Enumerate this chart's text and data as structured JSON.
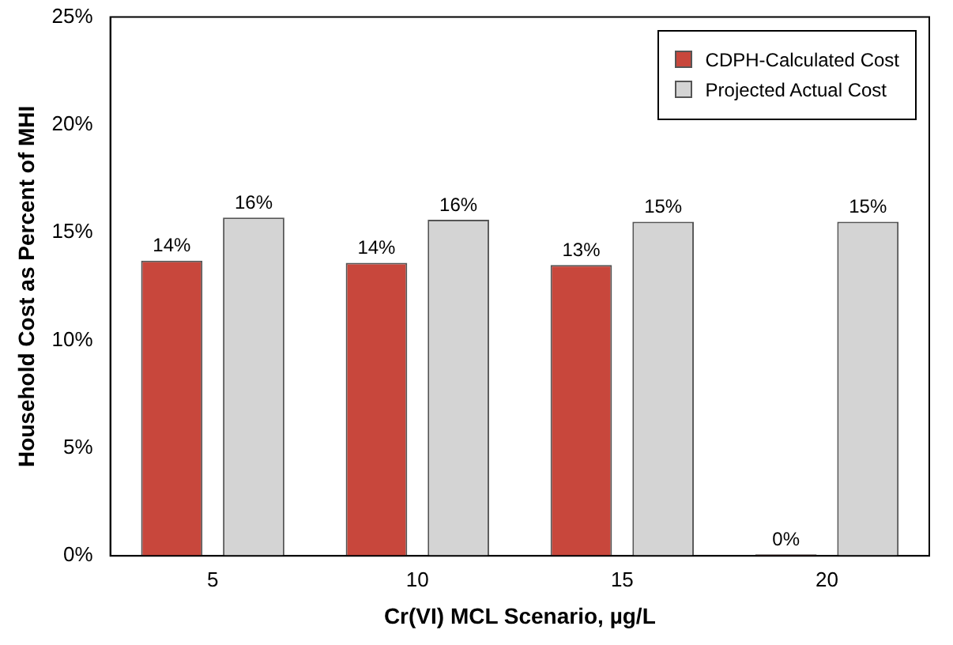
{
  "chart_data": {
    "type": "bar",
    "xlabel": "Cr(VI) MCL Scenario, µg/L",
    "ylabel": "Household Cost as Percent of MHI",
    "categories": [
      "5",
      "10",
      "15",
      "20"
    ],
    "series": [
      {
        "name": "CDPH-Calculated Cost",
        "color": "#c8473c",
        "values": [
          13.7,
          13.6,
          13.5,
          0
        ],
        "value_labels": [
          "14%",
          "14%",
          "13%",
          "0%"
        ]
      },
      {
        "name": "Projected Actual Cost",
        "color": "#d4d4d4",
        "values": [
          15.7,
          15.6,
          15.5,
          15.5
        ],
        "value_labels": [
          "16%",
          "16%",
          "15%",
          "15%"
        ]
      }
    ],
    "ylim": [
      0,
      25
    ],
    "yticks": [
      {
        "value": 0,
        "label": "0%"
      },
      {
        "value": 5,
        "label": "5%"
      },
      {
        "value": 10,
        "label": "10%"
      },
      {
        "value": 15,
        "label": "15%"
      },
      {
        "value": 20,
        "label": "20%"
      },
      {
        "value": 25,
        "label": "25%"
      }
    ],
    "grid": false,
    "legend": "top right"
  }
}
